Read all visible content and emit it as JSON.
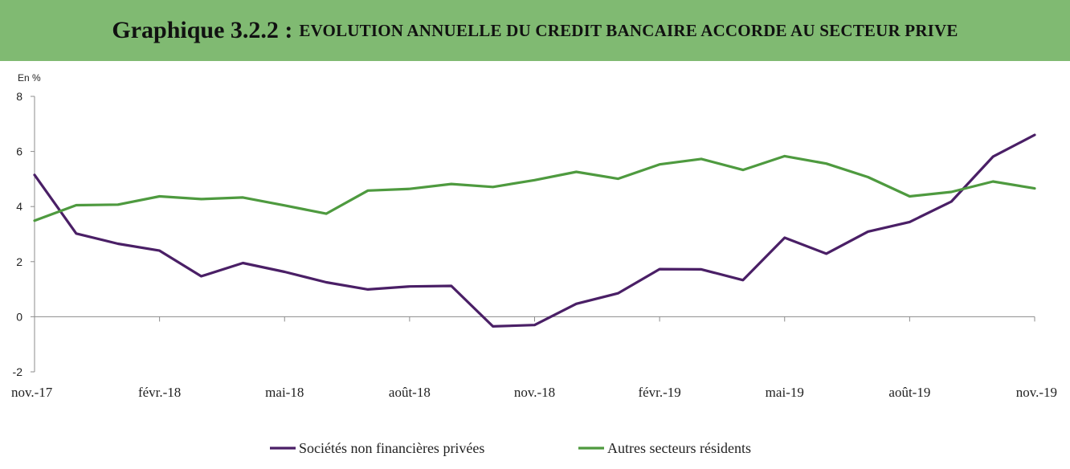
{
  "title": {
    "main": "Graphique 3.2.2 :",
    "sub": "EVOLUTION ANNUELLE DU CREDIT BANCAIRE ACCORDE AU SECTEUR PRIVE"
  },
  "colors": {
    "title_bg": "#80ba72",
    "series_1": "#4a1f66",
    "series_2": "#4e9a3f",
    "axis": "#8c8c8c"
  },
  "chart_data": {
    "type": "line",
    "ylabel": "En %",
    "ylim": [
      -2,
      8
    ],
    "yticks": [
      -2,
      0,
      2,
      4,
      6,
      8
    ],
    "x": [
      "nov.-17",
      "déc.-17",
      "janv.-18",
      "févr.-18",
      "mars-18",
      "avr.-18",
      "mai-18",
      "juin-18",
      "juil.-18",
      "août-18",
      "sept.-18",
      "oct.-18",
      "nov.-18",
      "déc.-18",
      "janv.-19",
      "févr.-19",
      "mars-19",
      "avr.-19",
      "mai-19",
      "juin-19",
      "juil.-19",
      "août-19",
      "sept.-19",
      "oct.-19",
      "nov.-19"
    ],
    "xtick_labels": [
      {
        "index": 0,
        "label": "nov.-17"
      },
      {
        "index": 3,
        "label": "févr.-18"
      },
      {
        "index": 6,
        "label": "mai-18"
      },
      {
        "index": 9,
        "label": "août-18"
      },
      {
        "index": 12,
        "label": "nov.-18"
      },
      {
        "index": 15,
        "label": "févr.-19"
      },
      {
        "index": 18,
        "label": "mai-19"
      },
      {
        "index": 21,
        "label": "août-19"
      },
      {
        "index": 24,
        "label": "nov.-19"
      }
    ],
    "series": [
      {
        "name": "Sociétés non financières privées",
        "color": "#4a1f66",
        "values": [
          5.15,
          3.02,
          2.65,
          2.4,
          1.47,
          1.95,
          1.63,
          1.25,
          0.99,
          1.1,
          1.12,
          -0.35,
          -0.3,
          0.47,
          0.85,
          1.73,
          1.72,
          1.33,
          2.87,
          2.29,
          3.09,
          3.44,
          4.18,
          5.81,
          6.6
        ]
      },
      {
        "name": "Autres secteurs résidents",
        "color": "#4e9a3f",
        "values": [
          3.49,
          4.05,
          4.07,
          4.37,
          4.27,
          4.33,
          4.04,
          3.74,
          4.58,
          4.64,
          4.82,
          4.71,
          4.96,
          5.26,
          5.01,
          5.53,
          5.73,
          5.33,
          5.83,
          5.56,
          5.07,
          4.37,
          4.53,
          4.91,
          4.66
        ]
      }
    ],
    "grid": false,
    "legend_position": "bottom"
  }
}
